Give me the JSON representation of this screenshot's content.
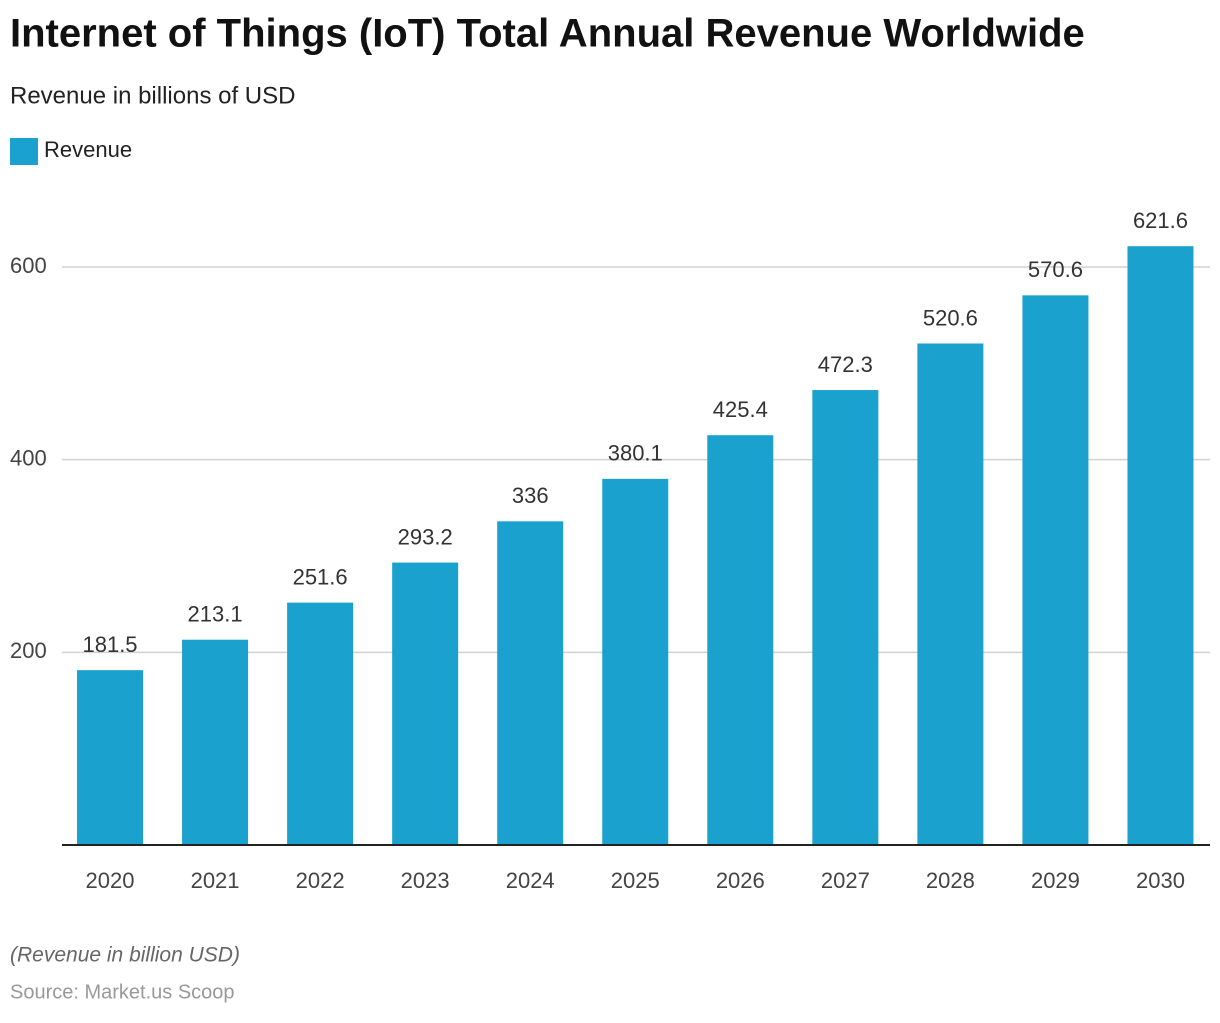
{
  "chart_data": {
    "type": "bar",
    "title": "Internet of Things (IoT) Total Annual Revenue Worldwide",
    "subtitle": "Revenue in billions of USD",
    "categories": [
      "2020",
      "2021",
      "2022",
      "2023",
      "2024",
      "2025",
      "2026",
      "2027",
      "2028",
      "2029",
      "2030"
    ],
    "series": [
      {
        "name": "Revenue",
        "color": "#1aa1cd",
        "values": [
          181.5,
          213.1,
          251.6,
          293.2,
          336,
          380.1,
          425.4,
          472.3,
          520.6,
          570.6,
          621.6
        ]
      }
    ],
    "ylim": [
      0,
      640
    ],
    "yticks": [
      200,
      400,
      600
    ],
    "grid": true,
    "note": "(Revenue in billion USD)",
    "source": "Source: Market.us Scoop"
  }
}
